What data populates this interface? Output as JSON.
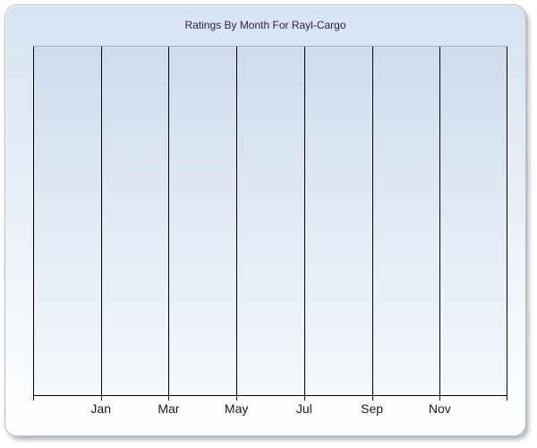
{
  "window": {
    "background": "#ffffff"
  },
  "chart": {
    "title": "Ratings By Month For Rayl-Cargo"
  },
  "chart_data": {
    "type": "line",
    "title": "Ratings By Month For Rayl-Cargo",
    "xlabel": "",
    "ylabel": "",
    "x_tick_labels": [
      "Jan",
      "Mar",
      "May",
      "Jul",
      "Sep",
      "Nov"
    ],
    "y_tick_labels": [],
    "x_gridline_count": 8,
    "grid": "vertical",
    "legend": "none",
    "series": []
  },
  "appearance": {
    "title_color": "#26264d",
    "axis_color": "#000000",
    "gridline_color": "#000000",
    "plot_top_border_color": "#a7b0c2",
    "tick_label_color": "#1a1a1a",
    "panel_border_color": "#b5bcc9",
    "panel_gradient_top": "#d8e2f1",
    "panel_gradient_bottom": "#feffff",
    "plot_gradient_top": "#cfdcec",
    "plot_gradient_bottom": "#f4f8fc"
  }
}
